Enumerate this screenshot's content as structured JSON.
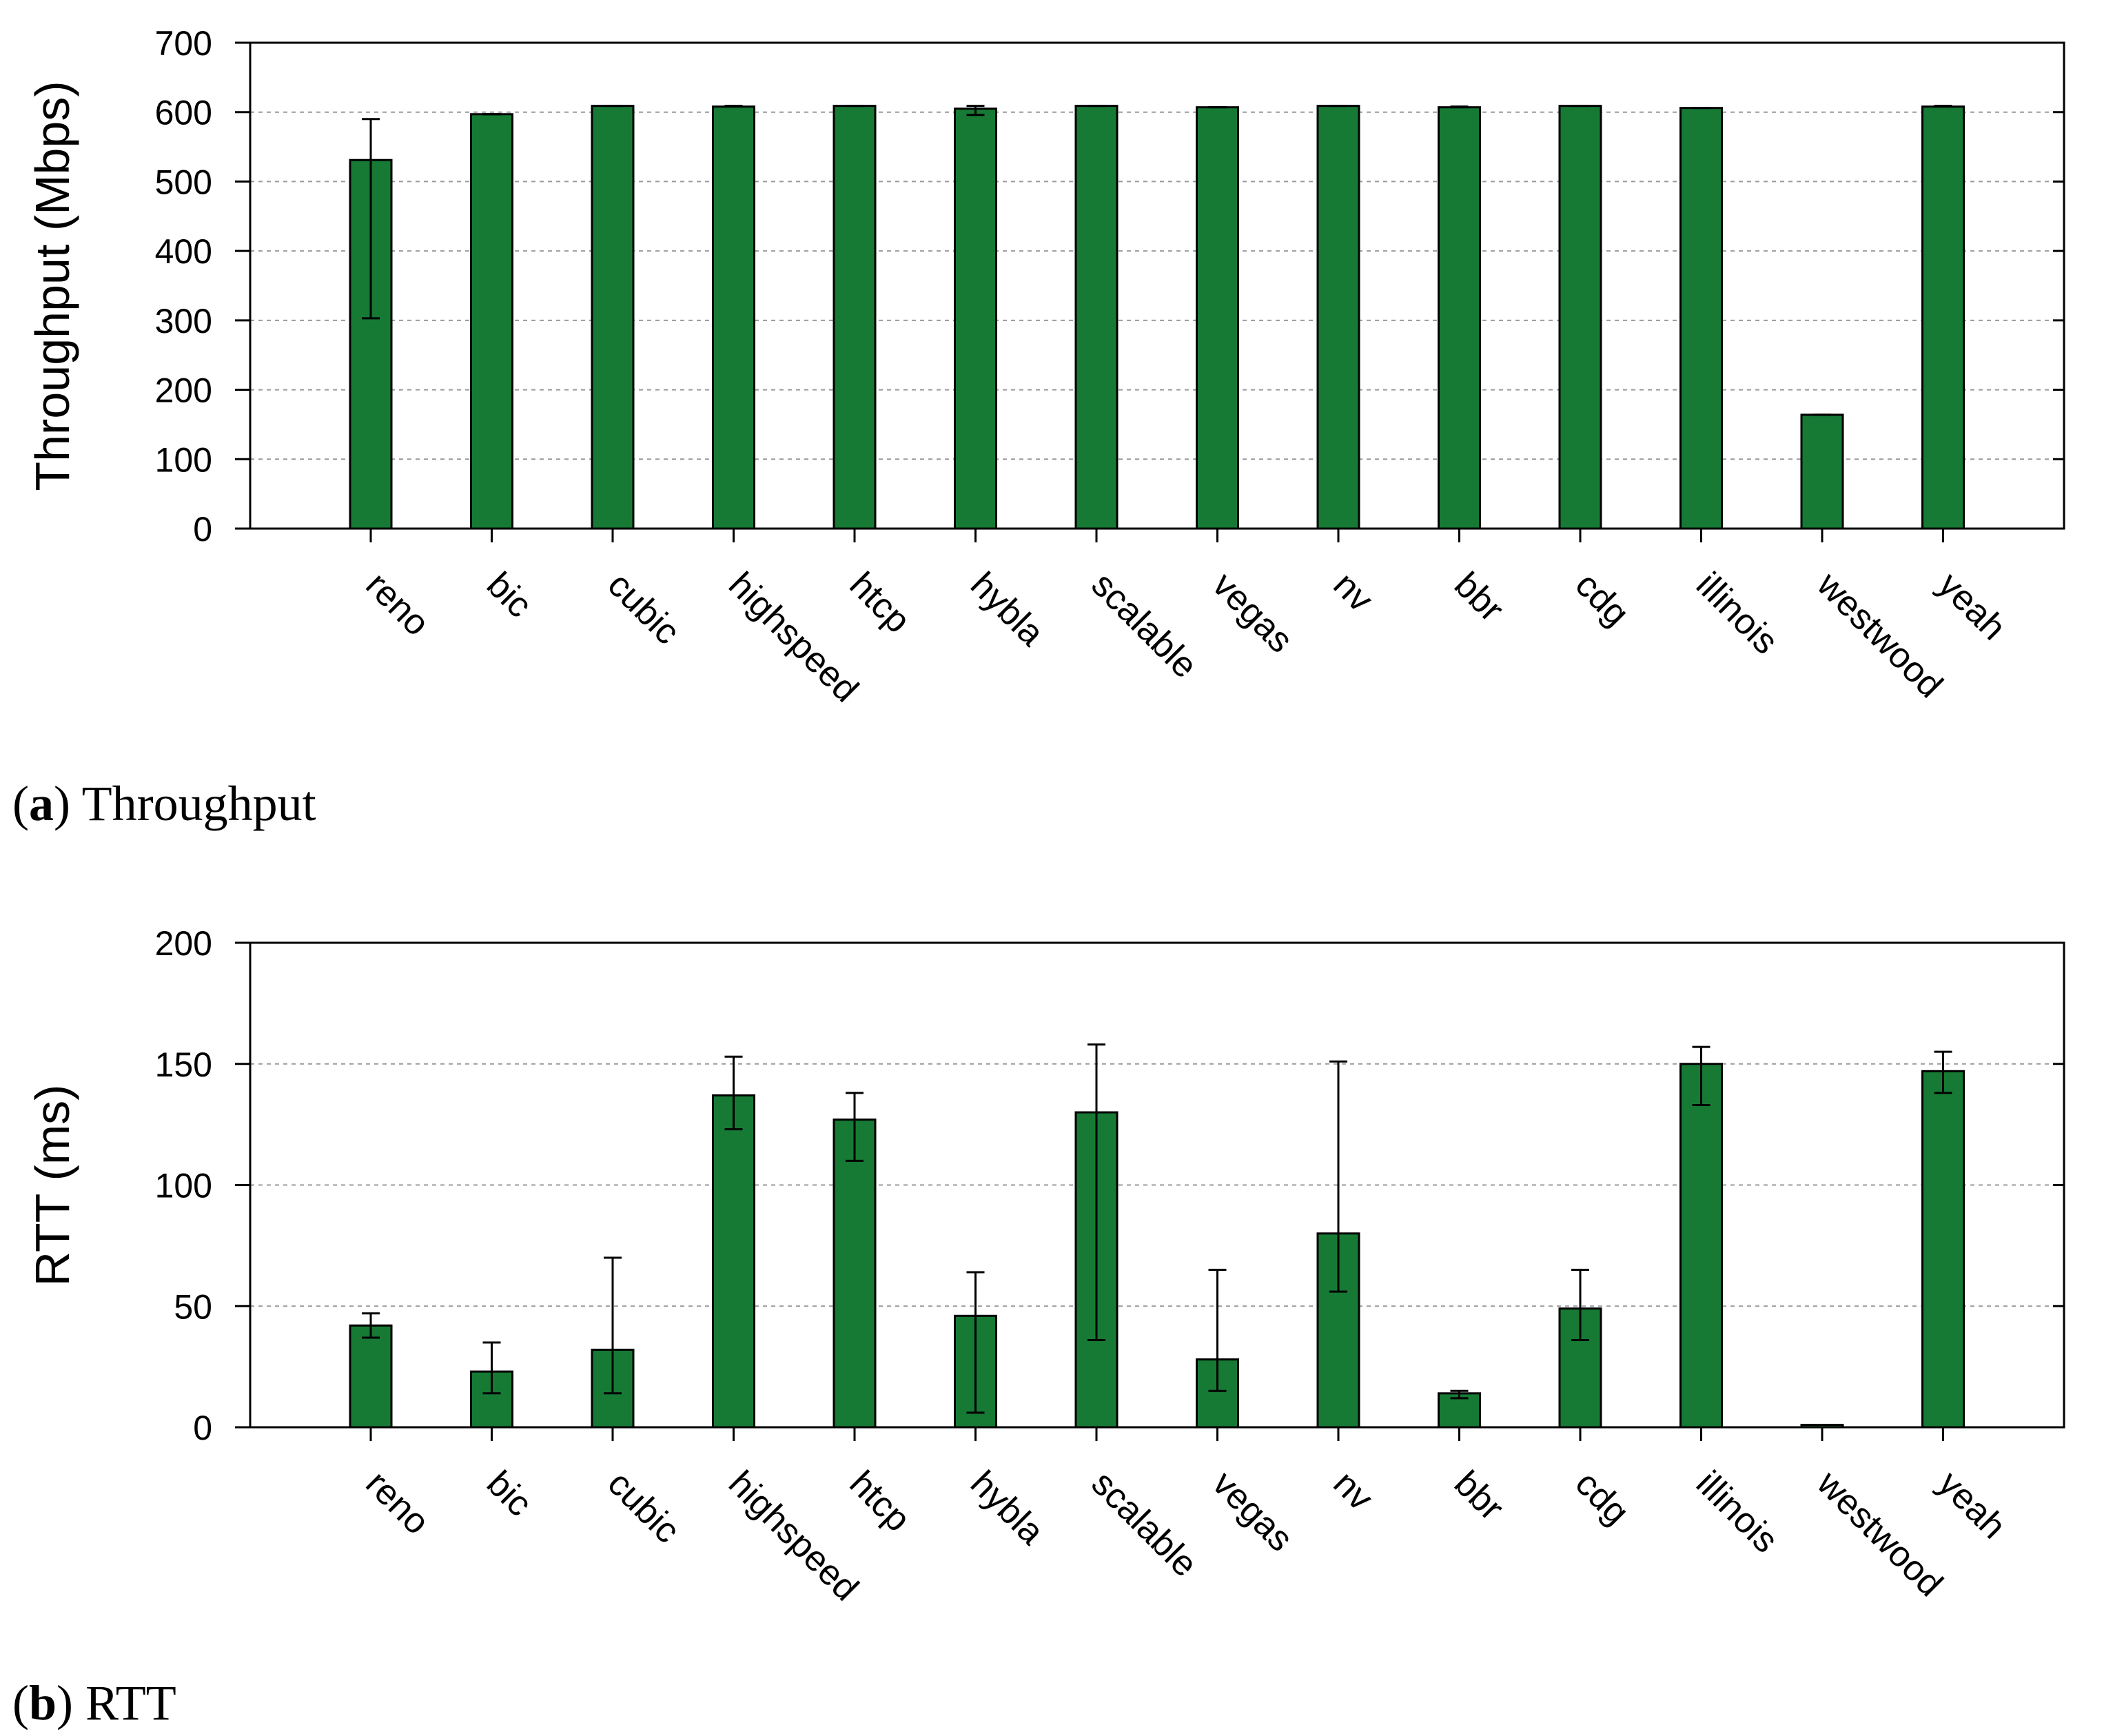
{
  "bar_color": "#167a35",
  "chart_data": [
    {
      "type": "bar",
      "caption_letter": "a",
      "caption_text": "Throughput",
      "xlabel": "",
      "ylabel": "Throughput (Mbps)",
      "ylim": [
        0,
        700
      ],
      "yticks": [
        0,
        100,
        200,
        300,
        400,
        500,
        600,
        700
      ],
      "grid": true,
      "categories": [
        "reno",
        "bic",
        "cubic",
        "highspeed",
        "htcp",
        "hybla",
        "scalable",
        "vegas",
        "nv",
        "bbr",
        "cdg",
        "illinois",
        "westwood",
        "yeah"
      ],
      "values": [
        531,
        597,
        609,
        608,
        609,
        605,
        609,
        607,
        609,
        607,
        609,
        606,
        164,
        608
      ],
      "error_low": [
        303,
        597,
        609,
        608,
        609,
        596,
        609,
        607,
        609,
        607,
        609,
        606,
        164,
        608
      ],
      "error_high": [
        590,
        597,
        609,
        609,
        609,
        609,
        609,
        607,
        609,
        608,
        609,
        606,
        164,
        609
      ]
    },
    {
      "type": "bar",
      "caption_letter": "b",
      "caption_text": "RTT",
      "xlabel": "",
      "ylabel": "RTT (ms)",
      "ylim": [
        0,
        200
      ],
      "yticks": [
        0,
        50,
        100,
        150,
        200
      ],
      "grid": true,
      "categories": [
        "reno",
        "bic",
        "cubic",
        "highspeed",
        "htcp",
        "hybla",
        "scalable",
        "vegas",
        "nv",
        "bbr",
        "cdg",
        "illinois",
        "westwood",
        "yeah"
      ],
      "values": [
        42,
        23,
        32,
        137,
        127,
        46,
        130,
        28,
        80,
        14,
        49,
        150,
        1,
        147
      ],
      "error_low": [
        37,
        14,
        14,
        123,
        110,
        6,
        36,
        15,
        56,
        12,
        36,
        133,
        1,
        138
      ],
      "error_high": [
        47,
        35,
        70,
        153,
        138,
        64,
        158,
        65,
        151,
        15,
        65,
        157,
        1,
        155
      ]
    }
  ]
}
